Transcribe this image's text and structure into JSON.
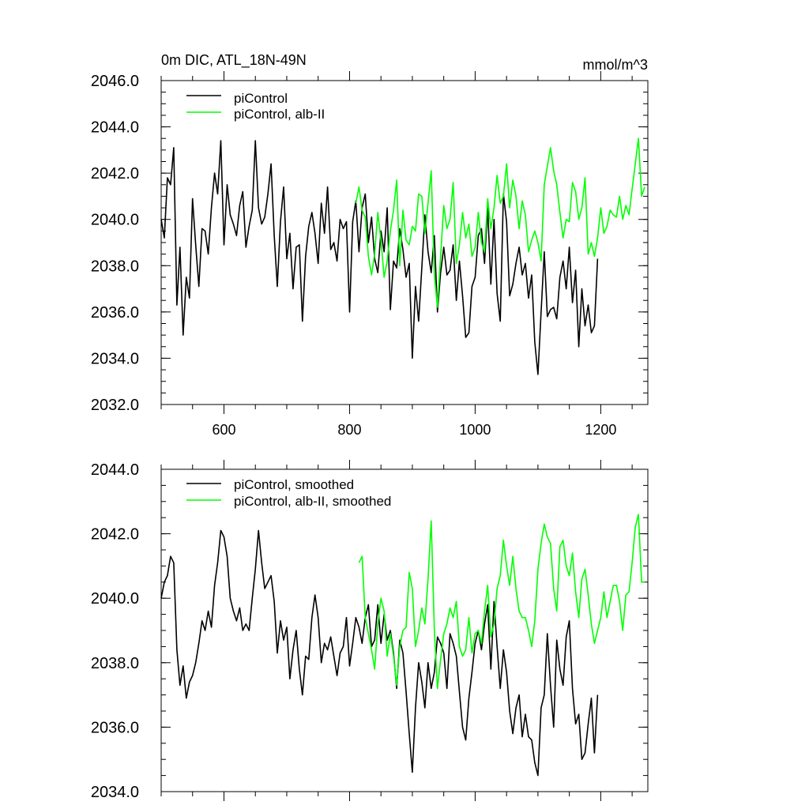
{
  "chart_data": [
    {
      "type": "line",
      "title": "0m DIC, ATL_18N-49N",
      "units": "mmol/m^3",
      "xlabel": "",
      "ylabel": "",
      "xlim": [
        500,
        1275
      ],
      "ylim": [
        2032.0,
        2046.0
      ],
      "xticks": [
        600,
        800,
        1000,
        1200
      ],
      "xtick_labels": [
        "600",
        "800",
        "1000",
        "1200"
      ],
      "yticks": [
        2032,
        2034,
        2036,
        2038,
        2040,
        2042,
        2044,
        2046
      ],
      "ytick_labels": [
        "2032.0",
        "2034.0",
        "2036.0",
        "2038.0",
        "2040.0",
        "2042.0",
        "2044.0",
        "2046.0"
      ],
      "grid": false,
      "legend_position": "top-left",
      "series": [
        {
          "name": "piControl",
          "color": "#000000",
          "x": [
            500,
            505,
            510,
            515,
            520,
            525,
            530,
            535,
            540,
            545,
            550,
            555,
            560,
            565,
            570,
            575,
            580,
            585,
            590,
            595,
            600,
            605,
            610,
            615,
            620,
            625,
            630,
            635,
            640,
            645,
            650,
            655,
            660,
            665,
            670,
            675,
            680,
            685,
            690,
            695,
            700,
            705,
            710,
            715,
            720,
            725,
            730,
            735,
            740,
            745,
            750,
            755,
            760,
            765,
            770,
            775,
            780,
            785,
            790,
            795,
            800,
            805,
            810,
            815,
            820,
            825,
            830,
            835,
            840,
            845,
            850,
            855,
            860,
            865,
            870,
            875,
            880,
            885,
            890,
            895,
            900,
            905,
            910,
            915,
            920,
            925,
            930,
            935,
            940,
            945,
            950,
            955,
            960,
            965,
            970,
            975,
            980,
            985,
            990,
            995,
            1000,
            1005,
            1010,
            1015,
            1020,
            1025,
            1030,
            1035,
            1040,
            1045,
            1050,
            1055,
            1060,
            1065,
            1070,
            1075,
            1080,
            1085,
            1090,
            1095,
            1100,
            1105,
            1110,
            1115,
            1120,
            1125,
            1130,
            1135,
            1140,
            1145,
            1150,
            1155,
            1160,
            1165,
            1170,
            1175,
            1180,
            1185,
            1190,
            1195
          ],
          "y": [
            2040.0,
            2039.2,
            2041.8,
            2041.5,
            2043.1,
            2036.3,
            2038.8,
            2035.0,
            2037.5,
            2036.6,
            2040.9,
            2038.9,
            2037.1,
            2039.6,
            2039.5,
            2038.5,
            2040.5,
            2042.0,
            2041.1,
            2043.4,
            2038.9,
            2041.5,
            2040.2,
            2039.8,
            2039.3,
            2040.6,
            2041.2,
            2038.8,
            2039.7,
            2040.4,
            2043.4,
            2040.5,
            2039.8,
            2040.1,
            2041.1,
            2042.4,
            2039.3,
            2037.1,
            2039.9,
            2041.4,
            2038.3,
            2039.4,
            2037.0,
            2038.8,
            2038.9,
            2035.6,
            2038.4,
            2039.7,
            2040.3,
            2039.4,
            2038.1,
            2040.7,
            2039.4,
            2041.4,
            2038.7,
            2039.0,
            2038.2,
            2040.0,
            2039.6,
            2039.9,
            2036.0,
            2039.9,
            2040.8,
            2038.6,
            2040.5,
            2041.1,
            2039.0,
            2040.1,
            2038.3,
            2037.7,
            2039.5,
            2038.6,
            2040.5,
            2036.1,
            2038.2,
            2037.9,
            2039.6,
            2038.7,
            2037.5,
            2038.1,
            2034.0,
            2037.1,
            2035.6,
            2037.9,
            2040.2,
            2038.6,
            2037.7,
            2039.3,
            2036.0,
            2037.7,
            2038.8,
            2037.6,
            2037.8,
            2038.9,
            2036.5,
            2038.2,
            2036.7,
            2034.9,
            2035.1,
            2037.1,
            2037.5,
            2039.3,
            2039.6,
            2038.1,
            2040.5,
            2037.2,
            2040.0,
            2036.8,
            2035.6,
            2041.1,
            2039.9,
            2036.7,
            2037.2,
            2038.1,
            2038.8,
            2037.6,
            2038.1,
            2036.6,
            2037.6,
            2034.7,
            2033.3,
            2036.0,
            2038.6,
            2035.8,
            2036.1,
            2036.2,
            2035.7,
            2037.5,
            2038.2,
            2037.0,
            2038.8,
            2036.4,
            2037.8,
            2034.5,
            2037.0,
            2035.4,
            2036.3,
            2035.1,
            2035.4,
            2038.3
          ]
        },
        {
          "name": "piControl, alb-II",
          "color": "#00ff00",
          "x": [
            810,
            815,
            820,
            825,
            830,
            835,
            840,
            845,
            850,
            855,
            860,
            865,
            870,
            875,
            880,
            885,
            890,
            895,
            900,
            905,
            910,
            915,
            920,
            925,
            930,
            935,
            940,
            945,
            950,
            955,
            960,
            965,
            970,
            975,
            980,
            985,
            990,
            995,
            1000,
            1005,
            1010,
            1015,
            1020,
            1025,
            1030,
            1035,
            1040,
            1045,
            1050,
            1055,
            1060,
            1065,
            1070,
            1075,
            1080,
            1085,
            1090,
            1095,
            1100,
            1105,
            1110,
            1115,
            1120,
            1125,
            1130,
            1135,
            1140,
            1145,
            1150,
            1155,
            1160,
            1165,
            1170,
            1175,
            1180,
            1185,
            1190,
            1195,
            1200,
            1205,
            1210,
            1215,
            1220,
            1225,
            1230,
            1235,
            1240,
            1245,
            1250,
            1255,
            1260,
            1265,
            1270
          ],
          "y": [
            2040.7,
            2041.4,
            2040.4,
            2040.1,
            2038.4,
            2037.6,
            2038.5,
            2040.3,
            2039.1,
            2037.5,
            2038.2,
            2039.5,
            2040.4,
            2041.7,
            2038.0,
            2040.4,
            2039.1,
            2038.9,
            2039.7,
            2039.5,
            2041.1,
            2041.0,
            2039.4,
            2040.7,
            2042.1,
            2037.6,
            2036.2,
            2038.4,
            2040.6,
            2039.6,
            2040.0,
            2041.6,
            2038.1,
            2038.9,
            2040.3,
            2039.2,
            2039.8,
            2038.4,
            2038.8,
            2040.3,
            2039.0,
            2038.6,
            2040.9,
            2039.6,
            2040.5,
            2041.9,
            2040.7,
            2041.0,
            2042.4,
            2040.5,
            2041.7,
            2041.0,
            2039.6,
            2040.8,
            2040.2,
            2038.6,
            2039.1,
            2039.5,
            2039.0,
            2038.2,
            2041.5,
            2042.3,
            2043.1,
            2042.1,
            2041.5,
            2040.3,
            2039.2,
            2040.0,
            2039.9,
            2041.6,
            2041.2,
            2040.0,
            2040.5,
            2041.8,
            2038.5,
            2039.0,
            2038.4,
            2039.2,
            2040.5,
            2039.4,
            2039.7,
            2040.4,
            2040.2,
            2040.1,
            2041.0,
            2040.0,
            2040.6,
            2040.2,
            2041.3,
            2042.4,
            2043.5,
            2041.0,
            2041.4
          ]
        }
      ]
    },
    {
      "type": "line",
      "title": "",
      "xlabel": "",
      "ylabel": "",
      "xlim": [
        500,
        1275
      ],
      "ylim": [
        2034.0,
        2044.0
      ],
      "xticks": [
        600,
        800,
        1000,
        1200
      ],
      "yticks": [
        2034,
        2036,
        2038,
        2040,
        2042,
        2044
      ],
      "ytick_labels": [
        "2034.0",
        "2036.0",
        "2038.0",
        "2040.0",
        "2042.0",
        "2044.0"
      ],
      "grid": false,
      "legend_position": "top-left",
      "series": [
        {
          "name": "piControl, smoothed",
          "color": "#000000",
          "x": [
            500,
            505,
            510,
            515,
            520,
            525,
            530,
            535,
            540,
            545,
            550,
            555,
            560,
            565,
            570,
            575,
            580,
            585,
            590,
            595,
            600,
            605,
            610,
            615,
            620,
            625,
            630,
            635,
            640,
            645,
            650,
            655,
            660,
            665,
            670,
            675,
            680,
            685,
            690,
            695,
            700,
            705,
            710,
            715,
            720,
            725,
            730,
            735,
            740,
            745,
            750,
            755,
            760,
            765,
            770,
            775,
            780,
            785,
            790,
            795,
            800,
            805,
            810,
            815,
            820,
            825,
            830,
            835,
            840,
            845,
            850,
            855,
            860,
            865,
            870,
            875,
            880,
            885,
            890,
            895,
            900,
            905,
            910,
            915,
            920,
            925,
            930,
            935,
            940,
            945,
            950,
            955,
            960,
            965,
            970,
            975,
            980,
            985,
            990,
            995,
            1000,
            1005,
            1010,
            1015,
            1020,
            1025,
            1030,
            1035,
            1040,
            1045,
            1050,
            1055,
            1060,
            1065,
            1070,
            1075,
            1080,
            1085,
            1090,
            1095,
            1100,
            1105,
            1110,
            1115,
            1120,
            1125,
            1130,
            1135,
            1140,
            1145,
            1150,
            1155,
            1160,
            1165,
            1170,
            1175,
            1180,
            1185,
            1190,
            1195
          ],
          "y": [
            2040.0,
            2040.5,
            2040.7,
            2041.3,
            2041.1,
            2038.4,
            2037.3,
            2037.9,
            2036.9,
            2037.4,
            2037.6,
            2038.0,
            2038.6,
            2039.3,
            2039.0,
            2039.6,
            2039.1,
            2040.4,
            2041.1,
            2042.1,
            2041.9,
            2041.3,
            2040.0,
            2039.6,
            2039.3,
            2039.7,
            2039.0,
            2039.2,
            2039.0,
            2040.0,
            2040.9,
            2042.1,
            2041.1,
            2040.3,
            2040.5,
            2040.7,
            2039.9,
            2038.3,
            2039.3,
            2038.7,
            2039.1,
            2037.5,
            2038.4,
            2039.0,
            2037.8,
            2037.0,
            2038.2,
            2038.1,
            2039.4,
            2040.1,
            2039.4,
            2038.0,
            2038.6,
            2038.4,
            2038.8,
            2038.2,
            2037.6,
            2038.3,
            2038.5,
            2039.4,
            2037.9,
            2038.6,
            2039.4,
            2039.1,
            2038.6,
            2039.4,
            2039.8,
            2038.5,
            2038.7,
            2039.8,
            2038.6,
            2039.5,
            2038.7,
            2039.0,
            2038.3,
            2037.2,
            2038.7,
            2038.3,
            2037.1,
            2035.8,
            2034.6,
            2036.6,
            2038.0,
            2037.4,
            2036.6,
            2038.0,
            2037.2,
            2037.7,
            2038.8,
            2038.6,
            2038.3,
            2037.2,
            2038.9,
            2038.6,
            2038.2,
            2037.1,
            2036.0,
            2035.6,
            2036.9,
            2037.7,
            2038.6,
            2039.0,
            2038.4,
            2039.2,
            2039.8,
            2037.8,
            2039.9,
            2038.5,
            2037.2,
            2038.4,
            2037.7,
            2036.5,
            2035.8,
            2036.6,
            2037.0,
            2035.7,
            2036.4,
            2035.7,
            2035.6,
            2034.9,
            2034.5,
            2036.6,
            2037.0,
            2038.9,
            2037.3,
            2036.0,
            2038.7,
            2037.8,
            2037.3,
            2038.8,
            2039.3,
            2037.2,
            2036.1,
            2036.4,
            2035.0,
            2035.2,
            2036.1,
            2036.9,
            2035.2,
            2037.0
          ]
        },
        {
          "name": "piControl, alb-II, smoothed",
          "color": "#00ff00",
          "x": [
            815,
            820,
            825,
            830,
            835,
            840,
            845,
            850,
            855,
            860,
            865,
            870,
            875,
            880,
            885,
            890,
            895,
            900,
            905,
            910,
            915,
            920,
            925,
            930,
            935,
            940,
            945,
            950,
            955,
            960,
            965,
            970,
            975,
            980,
            985,
            990,
            995,
            1000,
            1005,
            1010,
            1015,
            1020,
            1025,
            1030,
            1035,
            1040,
            1045,
            1050,
            1055,
            1060,
            1065,
            1070,
            1075,
            1080,
            1085,
            1090,
            1095,
            1100,
            1105,
            1110,
            1115,
            1120,
            1125,
            1130,
            1135,
            1140,
            1145,
            1150,
            1155,
            1160,
            1165,
            1170,
            1175,
            1180,
            1185,
            1190,
            1195,
            1200,
            1205,
            1210,
            1215,
            1220,
            1225,
            1230,
            1235,
            1240,
            1245,
            1250,
            1255,
            1260,
            1265,
            1270
          ],
          "y": [
            2041.1,
            2041.3,
            2039.4,
            2038.9,
            2038.4,
            2037.8,
            2039.2,
            2040.0,
            2039.6,
            2038.2,
            2038.9,
            2038.2,
            2037.3,
            2038.5,
            2039.0,
            2039.1,
            2040.8,
            2040.3,
            2038.5,
            2039.0,
            2039.7,
            2039.2,
            2040.6,
            2042.4,
            2039.0,
            2037.2,
            2038.1,
            2038.9,
            2039.2,
            2039.7,
            2039.4,
            2039.9,
            2038.5,
            2038.2,
            2038.4,
            2039.4,
            2038.3,
            2038.9,
            2039.0,
            2038.6,
            2039.6,
            2040.4,
            2038.8,
            2039.2,
            2040.3,
            2040.7,
            2041.8,
            2041.0,
            2040.4,
            2041.3,
            2040.3,
            2039.6,
            2039.4,
            2039.4,
            2039.0,
            2038.5,
            2039.3,
            2040.9,
            2041.7,
            2042.3,
            2041.9,
            2041.7,
            2040.3,
            2039.6,
            2041.6,
            2041.8,
            2041.0,
            2040.7,
            2041.4,
            2040.2,
            2039.4,
            2040.6,
            2040.9,
            2040.1,
            2039.2,
            2038.6,
            2039.0,
            2039.4,
            2040.2,
            2039.4,
            2039.9,
            2040.4,
            2040.4,
            2039.9,
            2039.0,
            2040.1,
            2040.2,
            2041.1,
            2042.2,
            2042.6,
            2040.5,
            2040.5
          ]
        }
      ]
    }
  ]
}
